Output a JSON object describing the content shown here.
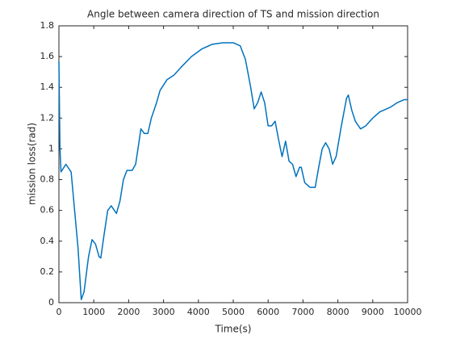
{
  "chart_data": {
    "type": "line",
    "title": "Angle between camera direction of TS and mission direction",
    "xlabel": "Time(s)",
    "ylabel": "mission loss(rad)",
    "x": [
      0,
      30,
      60,
      200,
      350,
      450,
      550,
      640,
      720,
      850,
      950,
      1050,
      1150,
      1200,
      1300,
      1400,
      1500,
      1650,
      1750,
      1850,
      1950,
      2100,
      2200,
      2300,
      2350,
      2450,
      2550,
      2650,
      2800,
      2900,
      3100,
      3300,
      3500,
      3800,
      4100,
      4400,
      4700,
      5000,
      5200,
      5350,
      5500,
      5600,
      5700,
      5800,
      5900,
      6000,
      6100,
      6200,
      6300,
      6400,
      6450,
      6500,
      6600,
      6700,
      6800,
      6900,
      6950,
      7050,
      7200,
      7350,
      7450,
      7550,
      7650,
      7750,
      7850,
      7950,
      8100,
      8250,
      8300,
      8400,
      8500,
      8650,
      8800,
      9000,
      9200,
      9500,
      9700,
      9900,
      10000
    ],
    "series": [
      {
        "color": "#0072bd",
        "values": [
          1.57,
          1.0,
          0.85,
          0.9,
          0.85,
          0.6,
          0.35,
          0.02,
          0.07,
          0.3,
          0.41,
          0.38,
          0.3,
          0.29,
          0.45,
          0.6,
          0.63,
          0.58,
          0.66,
          0.8,
          0.86,
          0.86,
          0.9,
          1.05,
          1.13,
          1.1,
          1.1,
          1.2,
          1.3,
          1.38,
          1.45,
          1.48,
          1.53,
          1.6,
          1.65,
          1.68,
          1.69,
          1.69,
          1.67,
          1.58,
          1.4,
          1.26,
          1.3,
          1.37,
          1.3,
          1.15,
          1.15,
          1.18,
          1.06,
          0.95,
          1.0,
          1.05,
          0.92,
          0.9,
          0.82,
          0.88,
          0.88,
          0.78,
          0.75,
          0.75,
          0.88,
          1.0,
          1.04,
          1.0,
          0.9,
          0.95,
          1.15,
          1.33,
          1.35,
          1.25,
          1.18,
          1.13,
          1.15,
          1.2,
          1.24,
          1.27,
          1.3,
          1.32,
          1.32
        ]
      }
    ],
    "xlim": [
      0,
      10000
    ],
    "xticks": [
      0,
      1000,
      2000,
      3000,
      4000,
      5000,
      6000,
      7000,
      8000,
      9000,
      10000
    ],
    "ylim": [
      0,
      1.8
    ],
    "yticks": [
      0,
      0.2,
      0.4,
      0.6,
      0.8,
      1,
      1.2,
      1.4,
      1.6,
      1.8
    ]
  }
}
